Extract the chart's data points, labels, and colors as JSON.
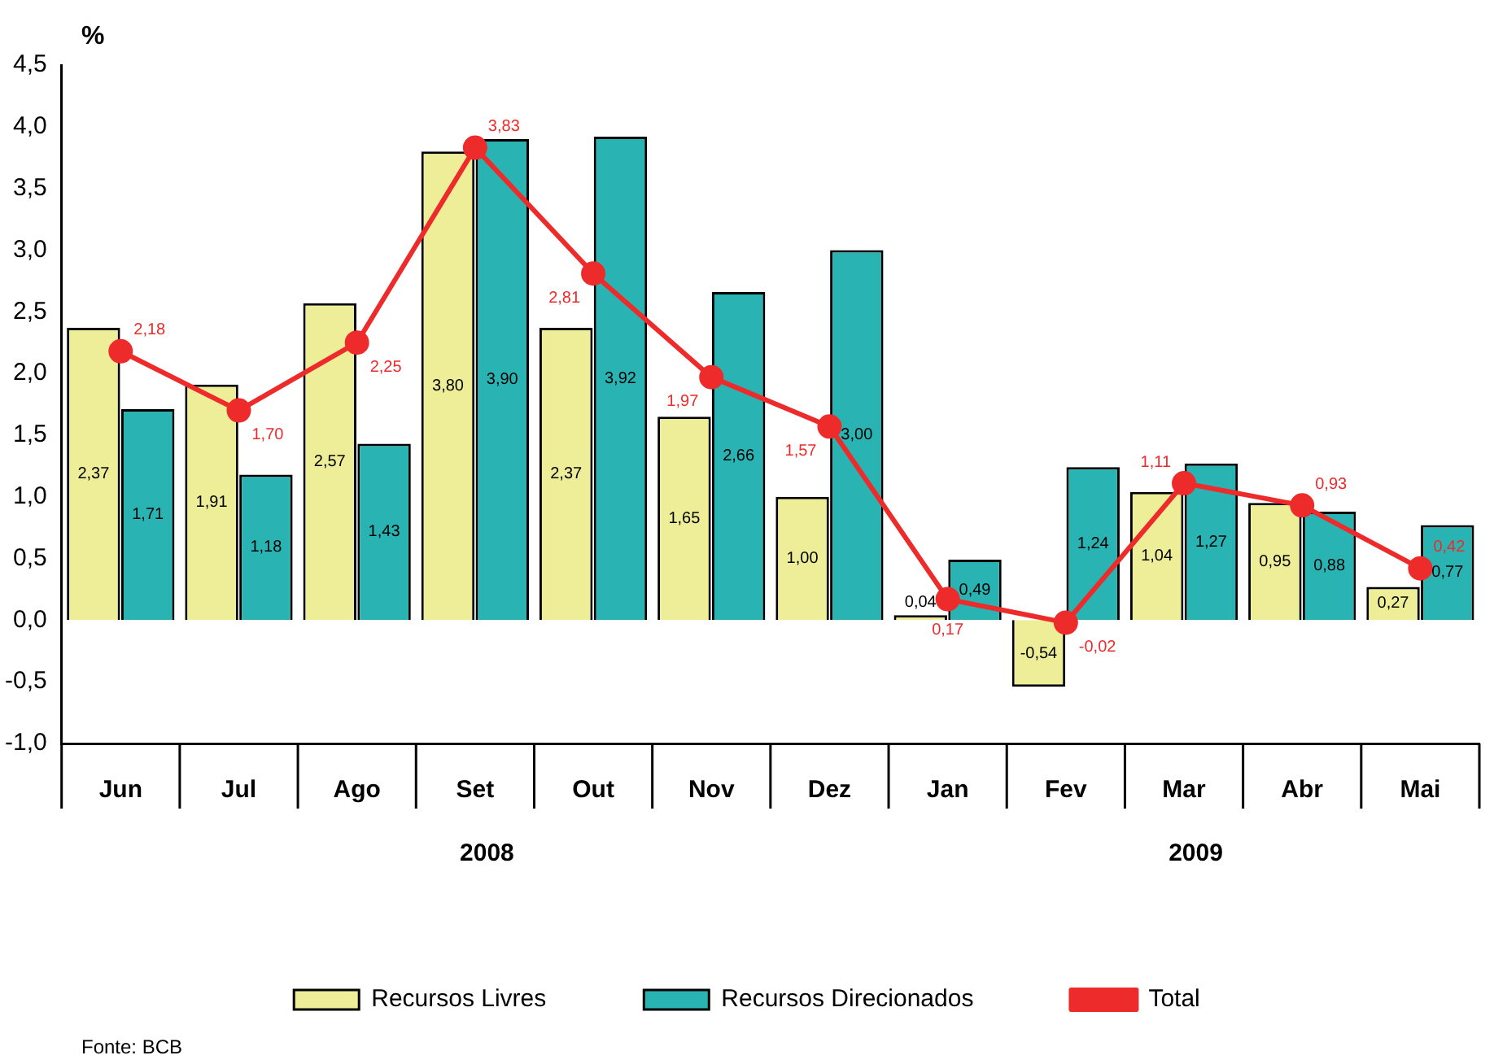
{
  "chart_data": {
    "type": "bar",
    "ylabel": "%",
    "categories": [
      "Jun",
      "Jul",
      "Ago",
      "Set",
      "Out",
      "Nov",
      "Dez",
      "Jan",
      "Fev",
      "Mar",
      "Abr",
      "Mai"
    ],
    "series": [
      {
        "name": "Recursos Livres",
        "color": "#eeee99",
        "values": [
          2.37,
          1.91,
          2.57,
          3.8,
          2.37,
          1.65,
          1.0,
          0.04,
          -0.54,
          1.04,
          0.95,
          0.27
        ],
        "value_labels": [
          "2,37",
          "1,91",
          "2,57",
          "3,80",
          "2,37",
          "1,65",
          "1,00",
          "0,04",
          "-0,54",
          "1,04",
          "0,95",
          "0,27"
        ]
      },
      {
        "name": "Recursos Direcionados",
        "color": "#2ab3b3",
        "values": [
          1.71,
          1.18,
          1.43,
          3.9,
          3.92,
          2.66,
          3.0,
          0.49,
          1.24,
          1.27,
          0.88,
          0.77
        ],
        "value_labels": [
          "1,71",
          "1,18",
          "1,43",
          "3,90",
          "3,92",
          "2,66",
          "3,00",
          "0,49",
          "1,24",
          "1,27",
          "0,88",
          "0,77"
        ]
      },
      {
        "name": "Total",
        "type": "line",
        "color": "#ee2b2b",
        "marker": "circle",
        "values": [
          2.18,
          1.7,
          2.25,
          3.83,
          2.81,
          1.97,
          1.57,
          0.17,
          -0.02,
          1.11,
          0.93,
          0.42
        ],
        "value_labels": [
          "2,18",
          "1,70",
          "2,25",
          "3,83",
          "2,81",
          "1,97",
          "1,57",
          "0,17",
          "-0,02",
          "1,11",
          "0,93",
          "0,42"
        ]
      }
    ],
    "ylim": [
      -1.0,
      4.5
    ],
    "yticks": [
      {
        "value": -1.0,
        "label": "-1,0"
      },
      {
        "value": -0.5,
        "label": "-0,5"
      },
      {
        "value": 0,
        "label": "0,0"
      },
      {
        "value": 0.5,
        "label": "0,5"
      },
      {
        "value": 1.0,
        "label": "1,0"
      },
      {
        "value": 1.5,
        "label": "1,5"
      },
      {
        "value": 2.0,
        "label": "2,0"
      },
      {
        "value": 2.5,
        "label": "2,5"
      },
      {
        "value": 3.0,
        "label": "3,0"
      },
      {
        "value": 3.5,
        "label": "3,5"
      },
      {
        "value": 4.0,
        "label": "4,0"
      },
      {
        "value": 4.5,
        "label": "4,5"
      }
    ],
    "grid": false,
    "legend": "bottom",
    "annotations": [
      "2008",
      "2009",
      "Fonte: BCB"
    ]
  }
}
